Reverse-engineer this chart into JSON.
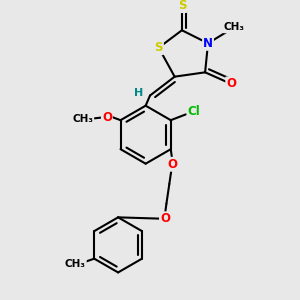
{
  "bg_color": "#e8e8e8",
  "bond_color": "#000000",
  "bond_width": 1.5,
  "S_color": "#cccc00",
  "N_color": "#0000ff",
  "O_color": "#ff0000",
  "Cl_color": "#00bb00",
  "H_color": "#008888",
  "figsize": [
    3.0,
    3.0
  ],
  "dpi": 100,
  "xlim": [
    0,
    10
  ],
  "ylim": [
    0,
    10
  ]
}
